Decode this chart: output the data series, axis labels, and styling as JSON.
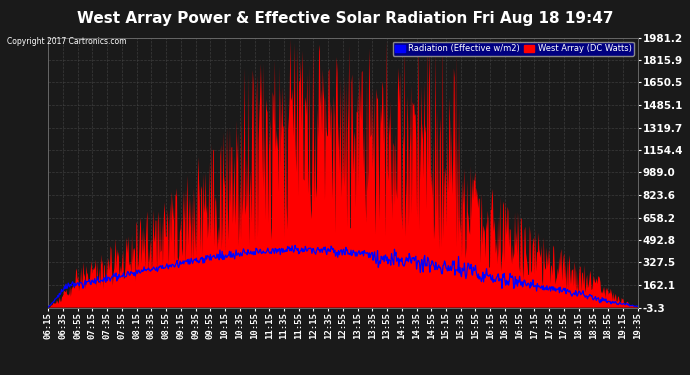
{
  "title": "West Array Power & Effective Solar Radiation Fri Aug 18 19:47",
  "copyright": "Copyright 2017 Cartronics.com",
  "legend_radiation": "Radiation (Effective w/m2)",
  "legend_west": "West Array (DC Watts)",
  "yticks": [
    -3.3,
    162.1,
    327.5,
    492.8,
    658.2,
    823.6,
    989.0,
    1154.4,
    1319.7,
    1485.1,
    1650.5,
    1815.9,
    1981.2
  ],
  "ymin": -3.3,
  "ymax": 1981.2,
  "background_color": "#1a1a1a",
  "plot_bg_color": "#1a1a1a",
  "title_color": "#ffffff",
  "grid_color": "#444444",
  "radiation_color": "#0000ff",
  "west_array_color": "#ff0000",
  "title_fontsize": 11,
  "xtick_fontsize": 6.5,
  "ytick_fontsize": 7.5,
  "xtick_labels": [
    "06:15",
    "06:35",
    "06:55",
    "07:15",
    "07:35",
    "07:55",
    "08:15",
    "08:35",
    "08:55",
    "09:15",
    "09:35",
    "09:55",
    "10:15",
    "10:35",
    "10:55",
    "11:15",
    "11:35",
    "11:55",
    "12:15",
    "12:35",
    "12:55",
    "13:15",
    "13:35",
    "13:55",
    "14:15",
    "14:35",
    "14:55",
    "15:15",
    "15:35",
    "15:55",
    "16:15",
    "16:35",
    "16:55",
    "17:15",
    "17:35",
    "17:55",
    "18:15",
    "18:35",
    "18:55",
    "19:15",
    "19:35"
  ]
}
